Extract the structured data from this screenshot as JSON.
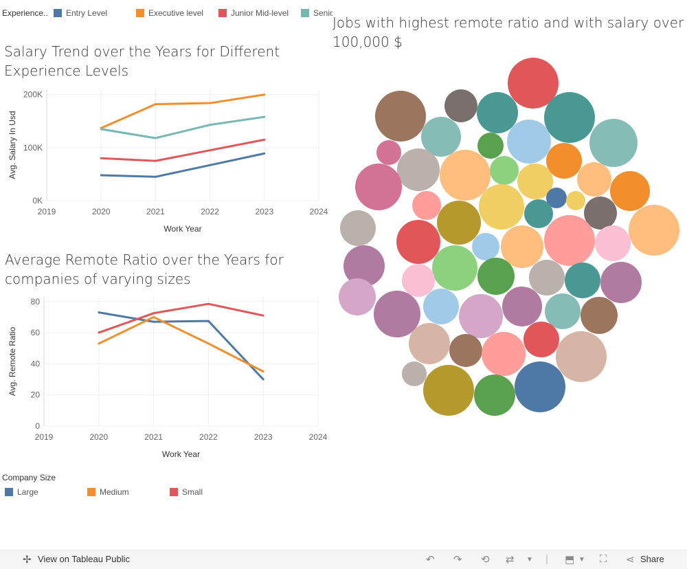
{
  "top_legend": {
    "title": "Experience..",
    "items": [
      {
        "label": "Entry Level",
        "color": "#4e79a7"
      },
      {
        "label": "Executive level",
        "color": "#f28e2b"
      },
      {
        "label": "Junior Mid-level",
        "color": "#e15759"
      },
      {
        "label": "Senior",
        "color": "#76b7b2"
      }
    ]
  },
  "salary_chart": {
    "title_line1": "Salary Trend over the Years for Different",
    "title_line2": "Experience Levels",
    "chart_data": {
      "type": "line",
      "title": "Salary Trend over the Years for Different Experience Levels",
      "xlabel": "Work Year",
      "ylabel": "Avg. Salary In Usd",
      "xlim": [
        2019,
        2024
      ],
      "ylim": [
        0,
        210000
      ],
      "x_ticks": [
        "2019",
        "2020",
        "2021",
        "2022",
        "2023",
        "2024"
      ],
      "y_ticks": [
        {
          "value": 0,
          "label": "0K"
        },
        {
          "value": 100000,
          "label": "100K"
        },
        {
          "value": 200000,
          "label": "200K"
        }
      ],
      "x": [
        2020,
        2021,
        2022,
        2023
      ],
      "series": [
        {
          "name": "Entry Level",
          "color": "#4e79a7",
          "values": [
            48000,
            45000,
            67000,
            89000
          ]
        },
        {
          "name": "Executive level",
          "color": "#f28e2b",
          "values": [
            137000,
            182000,
            184000,
            200000
          ]
        },
        {
          "name": "Junior Mid-level",
          "color": "#e15759",
          "values": [
            80000,
            75000,
            95000,
            115000
          ]
        },
        {
          "name": "Senior",
          "color": "#76b7b2",
          "values": [
            135000,
            118000,
            143000,
            158000
          ]
        }
      ]
    }
  },
  "remote_chart": {
    "title_line1": "Average Remote Ratio over the Years for",
    "title_line2": "companies of varying sizes",
    "chart_data": {
      "type": "line",
      "title": "Average Remote Ratio over the Years for companies of varying sizes",
      "xlabel": "Work Year",
      "ylabel": "Avg. Remote Ratio",
      "xlim": [
        2019,
        2024
      ],
      "ylim": [
        0,
        83
      ],
      "x_ticks": [
        "2019",
        "2020",
        "2021",
        "2022",
        "2023",
        "2024"
      ],
      "y_ticks": [
        {
          "value": 0,
          "label": "0"
        },
        {
          "value": 20,
          "label": "20"
        },
        {
          "value": 40,
          "label": "40"
        },
        {
          "value": 60,
          "label": "60"
        },
        {
          "value": 80,
          "label": "80"
        }
      ],
      "x": [
        2020,
        2021,
        2022,
        2023
      ],
      "series": [
        {
          "name": "Large",
          "color": "#4e79a7",
          "values": [
            73,
            67,
            67.5,
            30
          ]
        },
        {
          "name": "Medium",
          "color": "#f28e2b",
          "values": [
            53,
            70,
            53,
            35
          ]
        },
        {
          "name": "Small",
          "color": "#e15759",
          "values": [
            60,
            72.5,
            78.5,
            71
          ]
        }
      ]
    }
  },
  "company_legend": {
    "title": "Company Size",
    "items": [
      {
        "label": "Large",
        "color": "#4e79a7"
      },
      {
        "label": "Medium",
        "color": "#f28e2b"
      },
      {
        "label": "Small",
        "color": "#e15759"
      }
    ]
  },
  "bubble_chart": {
    "title_line1": "Jobs with highest remote ratio and with salary over",
    "title_line2": "100,000 $",
    "chart_data": {
      "type": "bubble",
      "title": "Jobs with highest remote ratio and with salary over 100,000 $",
      "bubbles": [
        {
          "size": 37,
          "color": "#e15759"
        },
        {
          "size": 37,
          "color": "#9c755f"
        },
        {
          "size": 24,
          "color": "#79706e"
        },
        {
          "size": 30,
          "color": "#499894"
        },
        {
          "size": 37,
          "color": "#499894"
        },
        {
          "size": 29,
          "color": "#86bcb6"
        },
        {
          "size": 35,
          "color": "#86bcb6"
        },
        {
          "size": 19,
          "color": "#59a14f"
        },
        {
          "size": 32,
          "color": "#a0cbe8"
        },
        {
          "size": 18,
          "color": "#d37295"
        },
        {
          "size": 31,
          "color": "#bab0ac"
        },
        {
          "size": 37,
          "color": "#ffbe7d"
        },
        {
          "size": 26,
          "color": "#f28e2b"
        },
        {
          "size": 21,
          "color": "#8cd17d"
        },
        {
          "size": 34,
          "color": "#d37295"
        },
        {
          "size": 26,
          "color": "#f1ce63"
        },
        {
          "size": 25,
          "color": "#ffbe7d"
        },
        {
          "size": 29,
          "color": "#f28e2b"
        },
        {
          "size": 21,
          "color": "#ff9d9a"
        },
        {
          "size": 15,
          "color": "#4e79a7"
        },
        {
          "size": 14,
          "color": "#f1ce63"
        },
        {
          "size": 33,
          "color": "#f1ce63"
        },
        {
          "size": 21,
          "color": "#499894"
        },
        {
          "size": 24,
          "color": "#79706e"
        },
        {
          "size": 32,
          "color": "#b6992d"
        },
        {
          "size": 26,
          "color": "#bab0ac"
        },
        {
          "size": 37,
          "color": "#ff9d9a"
        },
        {
          "size": 37,
          "color": "#ffbe7d"
        },
        {
          "size": 26,
          "color": "#fabfd2"
        },
        {
          "size": 32,
          "color": "#e15759"
        },
        {
          "size": 20,
          "color": "#a0cbe8"
        },
        {
          "size": 31,
          "color": "#ffbe7d"
        },
        {
          "size": 30,
          "color": "#b07aa1"
        },
        {
          "size": 33,
          "color": "#8cd17d"
        },
        {
          "size": 27,
          "color": "#59a14f"
        },
        {
          "size": 26,
          "color": "#bab0ac"
        },
        {
          "size": 26,
          "color": "#499894"
        },
        {
          "size": 30,
          "color": "#b07aa1"
        },
        {
          "size": 27,
          "color": "#d4a6c8"
        },
        {
          "size": 24,
          "color": "#fabfd2"
        },
        {
          "size": 34,
          "color": "#b07aa1"
        },
        {
          "size": 26,
          "color": "#a0cbe8"
        },
        {
          "size": 32,
          "color": "#d4a6c8"
        },
        {
          "size": 29,
          "color": "#b07aa1"
        },
        {
          "size": 26,
          "color": "#86bcb6"
        },
        {
          "size": 27,
          "color": "#9c755f"
        },
        {
          "size": 30,
          "color": "#d7b5a6"
        },
        {
          "size": 24,
          "color": "#9c755f"
        },
        {
          "size": 32,
          "color": "#ff9d9a"
        },
        {
          "size": 26,
          "color": "#e15759"
        },
        {
          "size": 37,
          "color": "#d7b5a6"
        },
        {
          "size": 18,
          "color": "#bab0ac"
        },
        {
          "size": 37,
          "color": "#b6992d"
        },
        {
          "size": 30,
          "color": "#59a14f"
        },
        {
          "size": 37,
          "color": "#4e79a7"
        }
      ]
    }
  },
  "footer": {
    "view_label": "View on Tableau Public",
    "share_label": "Share"
  }
}
